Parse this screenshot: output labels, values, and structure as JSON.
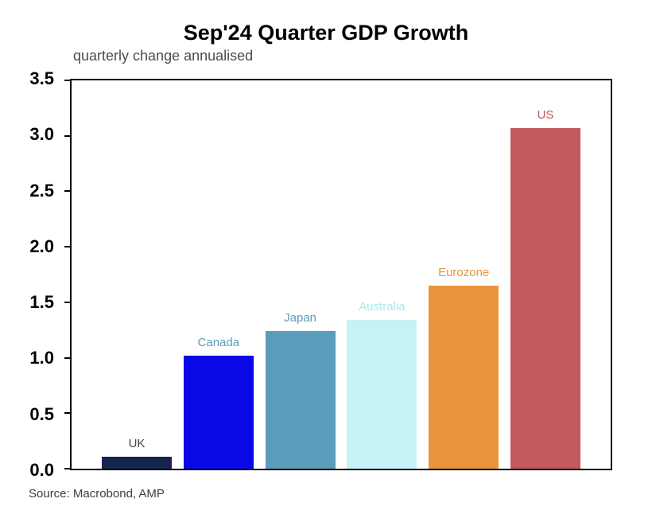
{
  "title": "Sep'24 Quarter GDP Growth",
  "subtitle": "quarterly change annualised",
  "source": "Source: Macrobond, AMP",
  "chart_data": {
    "type": "bar",
    "title": "Sep'24 Quarter GDP Growth",
    "subtitle": "quarterly change annualised",
    "categories": [
      "UK",
      "Canada",
      "Japan",
      "Australia",
      "Eurozone",
      "US"
    ],
    "values": [
      0.11,
      1.02,
      1.24,
      1.34,
      1.65,
      3.07
    ],
    "bar_colors": [
      "#16254e",
      "#0909e8",
      "#5b9cba",
      "#c6f2f7",
      "#e8953e",
      "#c15b5e"
    ],
    "label_colors": [
      "#444444",
      "#5b9cba",
      "#5b9cba",
      "#a9e6ef",
      "#e8953e",
      "#c15b5e"
    ],
    "xlabel": "",
    "ylabel": "",
    "ylim": [
      0,
      3.5
    ],
    "ytick_step": 0.5,
    "grid": false,
    "legend_position": "none",
    "source": "Source: Macrobond, AMP"
  }
}
